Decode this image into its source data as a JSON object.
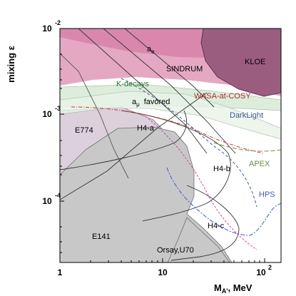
{
  "chart_data": {
    "type": "exclusion-plot",
    "title": "",
    "xlabel": "M",
    "xlabel_sub": "A'",
    "xlabel_unit": ", MeV",
    "ylabel": "mixing ε",
    "x_scale": "log",
    "y_scale": "log",
    "xlim": [
      1,
      150
    ],
    "ylim": [
      2e-05,
      0.01
    ],
    "x_ticks": [
      {
        "base": "1",
        "exp": ""
      },
      {
        "base": "10",
        "exp": ""
      },
      {
        "base": "10",
        "exp": "2"
      }
    ],
    "y_ticks": [
      {
        "base": "10",
        "exp": "-2"
      },
      {
        "base": "10",
        "exp": "-3"
      },
      {
        "base": "10",
        "exp": "-4"
      }
    ],
    "regions": [
      {
        "label": "SINDRUM",
        "color": "#e5a8c2"
      },
      {
        "label": "a",
        "label_sub": "e",
        "color": "#d988ab"
      },
      {
        "label": "KLOE",
        "color": "#9a5d80"
      },
      {
        "label": "K-decays",
        "color": "#d6ead6"
      },
      {
        "label": "a",
        "label_sub": "μ",
        "label_suffix": "favored",
        "color": "#e8f2e8"
      },
      {
        "label": "WASA-at-COSY",
        "color": "#c83232"
      },
      {
        "label": "E774",
        "color": "#dcd0dc"
      },
      {
        "label": "E141",
        "color": "#c8c8c8"
      },
      {
        "label": "Orsay,U70",
        "color": "#c8c8c8"
      }
    ],
    "projections": [
      {
        "label": "H4-a",
        "color": "#444444"
      },
      {
        "label": "H4-b",
        "color": "#444444"
      },
      {
        "label": "H4-c",
        "color": "#444444"
      },
      {
        "label": "DarkLight",
        "color": "#3c5a8c"
      },
      {
        "label": "APEX",
        "color": "#6e8c3c"
      },
      {
        "label": "HPS",
        "color": "#3c5ac8"
      }
    ]
  }
}
